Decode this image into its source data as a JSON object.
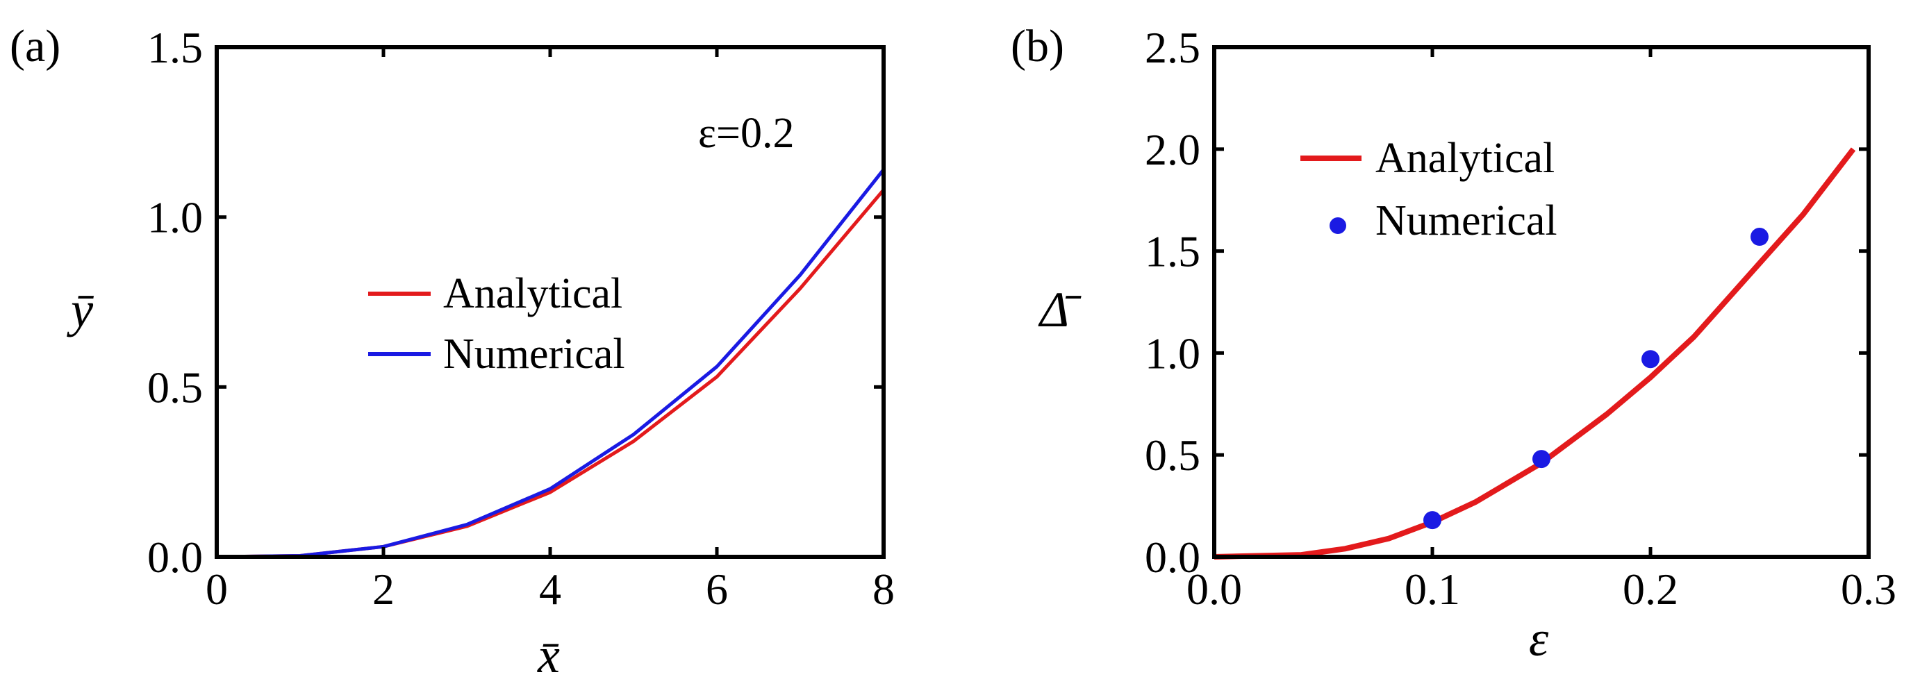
{
  "figure": {
    "panels": [
      "(a)",
      "(b)"
    ]
  },
  "chart_data": [
    {
      "type": "line",
      "panel_label": "(a)",
      "annotation": "ε=0.2",
      "xlabel": "x̄",
      "ylabel": "ȳ",
      "xlim": [
        0,
        8
      ],
      "ylim": [
        0,
        1.5
      ],
      "xticks": [
        0,
        2,
        4,
        6,
        8
      ],
      "yticks": [
        0.0,
        0.5,
        1.0,
        1.5
      ],
      "xtick_labels": [
        "0",
        "2",
        "4",
        "6",
        "8"
      ],
      "ytick_labels": [
        "0.0",
        "0.5",
        "1.0",
        "1.5"
      ],
      "legend_position": "center",
      "series": [
        {
          "name": "Analytical",
          "color": "#e31a1c",
          "x": [
            0,
            1,
            2,
            3,
            4,
            5,
            6,
            7,
            8
          ],
          "y": [
            0.0,
            0.003,
            0.03,
            0.09,
            0.19,
            0.34,
            0.53,
            0.79,
            1.08
          ]
        },
        {
          "name": "Numerical",
          "color": "#1a1ae3",
          "x": [
            0,
            1,
            2,
            3,
            4,
            5,
            6,
            7,
            8
          ],
          "y": [
            0.0,
            0.003,
            0.03,
            0.095,
            0.2,
            0.36,
            0.56,
            0.83,
            1.14
          ]
        }
      ]
    },
    {
      "type": "scatter",
      "panel_label": "(b)",
      "xlabel": "ε",
      "ylabel": "Δ̄",
      "xlim": [
        0.0,
        0.3
      ],
      "ylim": [
        0.0,
        2.5
      ],
      "xticks": [
        0.0,
        0.1,
        0.2,
        0.3
      ],
      "yticks": [
        0.0,
        0.5,
        1.0,
        1.5,
        2.0,
        2.5
      ],
      "xtick_labels": [
        "0.0",
        "0.1",
        "0.2",
        "0.3"
      ],
      "ytick_labels": [
        "0.0",
        "0.5",
        "1.0",
        "1.5",
        "2.0",
        "2.5"
      ],
      "legend_position": "top-left",
      "series": [
        {
          "name": "Analytical",
          "kind": "line",
          "color": "#e31a1c",
          "x": [
            0.0,
            0.02,
            0.04,
            0.06,
            0.08,
            0.1,
            0.12,
            0.15,
            0.18,
            0.2,
            0.22,
            0.25,
            0.27,
            0.293
          ],
          "y": [
            0.0,
            0.005,
            0.01,
            0.04,
            0.09,
            0.17,
            0.27,
            0.46,
            0.7,
            0.88,
            1.08,
            1.44,
            1.68,
            2.0
          ]
        },
        {
          "name": "Numerical",
          "kind": "points",
          "color": "#1a1ae3",
          "x": [
            0.1,
            0.15,
            0.2,
            0.25
          ],
          "y": [
            0.18,
            0.48,
            0.97,
            1.57
          ]
        }
      ]
    }
  ]
}
